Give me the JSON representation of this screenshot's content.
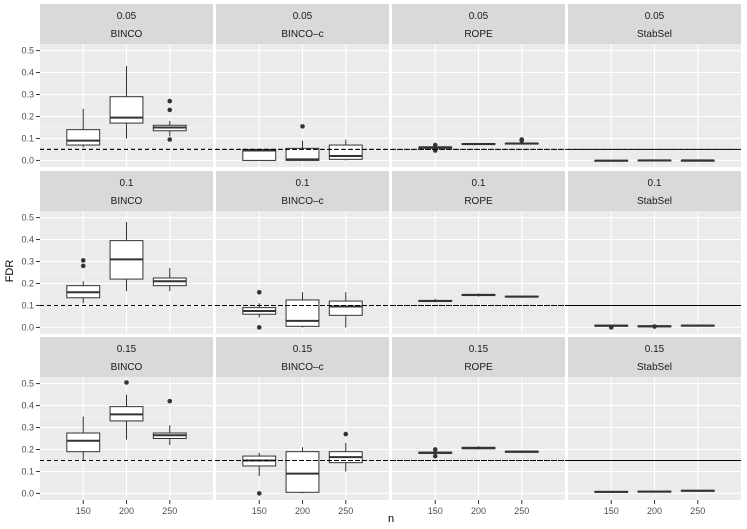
{
  "chart_data": {
    "type": "boxplot",
    "facet_rows": [
      "0.05",
      "0.1",
      "0.15"
    ],
    "facet_cols": [
      "BINCO",
      "BINCO–c",
      "ROPE",
      "StabSel"
    ],
    "categories": [
      "150",
      "200",
      "250"
    ],
    "xlabel": "n",
    "ylabel": "FDR",
    "ylim": [
      -0.03,
      0.53
    ],
    "yticks": [
      "0.0",
      "0.1",
      "0.2",
      "0.3",
      "0.4",
      "0.5"
    ],
    "reference_lines": [
      0.05,
      0.1,
      0.15
    ],
    "colors": {
      "panel_bg": "#ebebeb",
      "strip_bg": "#d9d9d9",
      "grid_major": "#ffffff",
      "grid_minor": "#f5f5f5",
      "box_fill": "#ffffff",
      "box_line": "#333333",
      "ref_line": "#000000"
    },
    "panels": [
      [
        {
          "boxes": [
            {
              "n": "150",
              "min": 0.06,
              "q1": 0.07,
              "med": 0.09,
              "q3": 0.14,
              "max": 0.235,
              "outliers": []
            },
            {
              "n": "200",
              "min": 0.1,
              "q1": 0.17,
              "med": 0.195,
              "q3": 0.29,
              "max": 0.43,
              "outliers": []
            },
            {
              "n": "250",
              "min": 0.11,
              "q1": 0.135,
              "med": 0.15,
              "q3": 0.16,
              "max": 0.18,
              "outliers": [
                0.27,
                0.23,
                0.095
              ]
            }
          ]
        },
        {
          "boxes": [
            {
              "n": "150",
              "min": 0.0,
              "q1": 0.0,
              "med": 0.045,
              "q3": 0.05,
              "max": 0.05,
              "outliers": []
            },
            {
              "n": "200",
              "min": 0.0,
              "q1": 0.0,
              "med": 0.005,
              "q3": 0.055,
              "max": 0.09,
              "outliers": [
                0.155
              ]
            },
            {
              "n": "250",
              "min": 0.0,
              "q1": 0.005,
              "med": 0.02,
              "q3": 0.07,
              "max": 0.095,
              "outliers": []
            }
          ]
        },
        {
          "boxes": [
            {
              "n": "150",
              "min": 0.055,
              "q1": 0.055,
              "med": 0.06,
              "q3": 0.06,
              "max": 0.065,
              "outliers": [
                0.045,
                0.07
              ]
            },
            {
              "n": "200",
              "min": 0.07,
              "q1": 0.072,
              "med": 0.075,
              "q3": 0.077,
              "max": 0.08,
              "outliers": []
            },
            {
              "n": "250",
              "min": 0.072,
              "q1": 0.075,
              "med": 0.077,
              "q3": 0.078,
              "max": 0.08,
              "outliers": [
                0.095,
                0.09
              ]
            }
          ]
        },
        {
          "boxes": [
            {
              "n": "150",
              "min": -0.003,
              "q1": -0.002,
              "med": -0.001,
              "q3": 0.0,
              "max": 0.001,
              "outliers": []
            },
            {
              "n": "200",
              "min": -0.002,
              "q1": -0.001,
              "med": 0.0,
              "q3": 0.001,
              "max": 0.002,
              "outliers": []
            },
            {
              "n": "250",
              "min": -0.002,
              "q1": -0.001,
              "med": 0.0,
              "q3": 0.0,
              "max": 0.001,
              "outliers": []
            }
          ]
        }
      ],
      [
        {
          "boxes": [
            {
              "n": "150",
              "min": 0.11,
              "q1": 0.135,
              "med": 0.16,
              "q3": 0.19,
              "max": 0.21,
              "outliers": [
                0.305,
                0.28
              ]
            },
            {
              "n": "200",
              "min": 0.165,
              "q1": 0.22,
              "med": 0.31,
              "q3": 0.395,
              "max": 0.48,
              "outliers": []
            },
            {
              "n": "250",
              "min": 0.165,
              "q1": 0.19,
              "med": 0.21,
              "q3": 0.225,
              "max": 0.27,
              "outliers": []
            }
          ]
        },
        {
          "boxes": [
            {
              "n": "150",
              "min": 0.045,
              "q1": 0.06,
              "med": 0.075,
              "q3": 0.09,
              "max": 0.11,
              "outliers": [
                0.16,
                0.0
              ]
            },
            {
              "n": "200",
              "min": 0.0,
              "q1": 0.005,
              "med": 0.03,
              "q3": 0.125,
              "max": 0.16,
              "outliers": []
            },
            {
              "n": "250",
              "min": 0.0,
              "q1": 0.055,
              "med": 0.095,
              "q3": 0.12,
              "max": 0.16,
              "outliers": []
            }
          ]
        },
        {
          "boxes": [
            {
              "n": "150",
              "min": 0.115,
              "q1": 0.118,
              "med": 0.12,
              "q3": 0.123,
              "max": 0.13,
              "outliers": []
            },
            {
              "n": "200",
              "min": 0.14,
              "q1": 0.145,
              "med": 0.148,
              "q3": 0.15,
              "max": 0.155,
              "outliers": []
            },
            {
              "n": "250",
              "min": 0.135,
              "q1": 0.138,
              "med": 0.14,
              "q3": 0.142,
              "max": 0.145,
              "outliers": []
            }
          ]
        },
        {
          "boxes": [
            {
              "n": "150",
              "min": 0.0,
              "q1": 0.005,
              "med": 0.008,
              "q3": 0.01,
              "max": 0.012,
              "outliers": [
                0.0
              ]
            },
            {
              "n": "200",
              "min": 0.0,
              "q1": 0.003,
              "med": 0.005,
              "q3": 0.008,
              "max": 0.01,
              "outliers": [
                0.004
              ]
            },
            {
              "n": "250",
              "min": 0.005,
              "q1": 0.006,
              "med": 0.008,
              "q3": 0.01,
              "max": 0.012,
              "outliers": []
            }
          ]
        }
      ],
      [
        {
          "boxes": [
            {
              "n": "150",
              "min": 0.15,
              "q1": 0.19,
              "med": 0.24,
              "q3": 0.275,
              "max": 0.35,
              "outliers": []
            },
            {
              "n": "200",
              "min": 0.245,
              "q1": 0.33,
              "med": 0.36,
              "q3": 0.395,
              "max": 0.45,
              "outliers": [
                0.505
              ]
            },
            {
              "n": "250",
              "min": 0.22,
              "q1": 0.25,
              "med": 0.265,
              "q3": 0.275,
              "max": 0.31,
              "outliers": [
                0.42
              ]
            }
          ]
        },
        {
          "boxes": [
            {
              "n": "150",
              "min": 0.08,
              "q1": 0.125,
              "med": 0.15,
              "q3": 0.17,
              "max": 0.185,
              "outliers": [
                0.0
              ]
            },
            {
              "n": "200",
              "min": 0.0,
              "q1": 0.005,
              "med": 0.09,
              "q3": 0.19,
              "max": 0.21,
              "outliers": []
            },
            {
              "n": "250",
              "min": 0.1,
              "q1": 0.14,
              "med": 0.165,
              "q3": 0.19,
              "max": 0.23,
              "outliers": [
                0.27
              ]
            }
          ]
        },
        {
          "boxes": [
            {
              "n": "150",
              "min": 0.18,
              "q1": 0.182,
              "med": 0.185,
              "q3": 0.188,
              "max": 0.19,
              "outliers": [
                0.2,
                0.17
              ]
            },
            {
              "n": "200",
              "min": 0.2,
              "q1": 0.203,
              "med": 0.207,
              "q3": 0.21,
              "max": 0.215,
              "outliers": []
            },
            {
              "n": "250",
              "min": 0.185,
              "q1": 0.187,
              "med": 0.19,
              "q3": 0.192,
              "max": 0.195,
              "outliers": []
            }
          ]
        },
        {
          "boxes": [
            {
              "n": "150",
              "min": 0.003,
              "q1": 0.005,
              "med": 0.007,
              "q3": 0.009,
              "max": 0.01,
              "outliers": []
            },
            {
              "n": "200",
              "min": 0.004,
              "q1": 0.006,
              "med": 0.008,
              "q3": 0.01,
              "max": 0.011,
              "outliers": []
            },
            {
              "n": "250",
              "min": 0.008,
              "q1": 0.01,
              "med": 0.012,
              "q3": 0.014,
              "max": 0.016,
              "outliers": []
            }
          ]
        }
      ]
    ]
  }
}
